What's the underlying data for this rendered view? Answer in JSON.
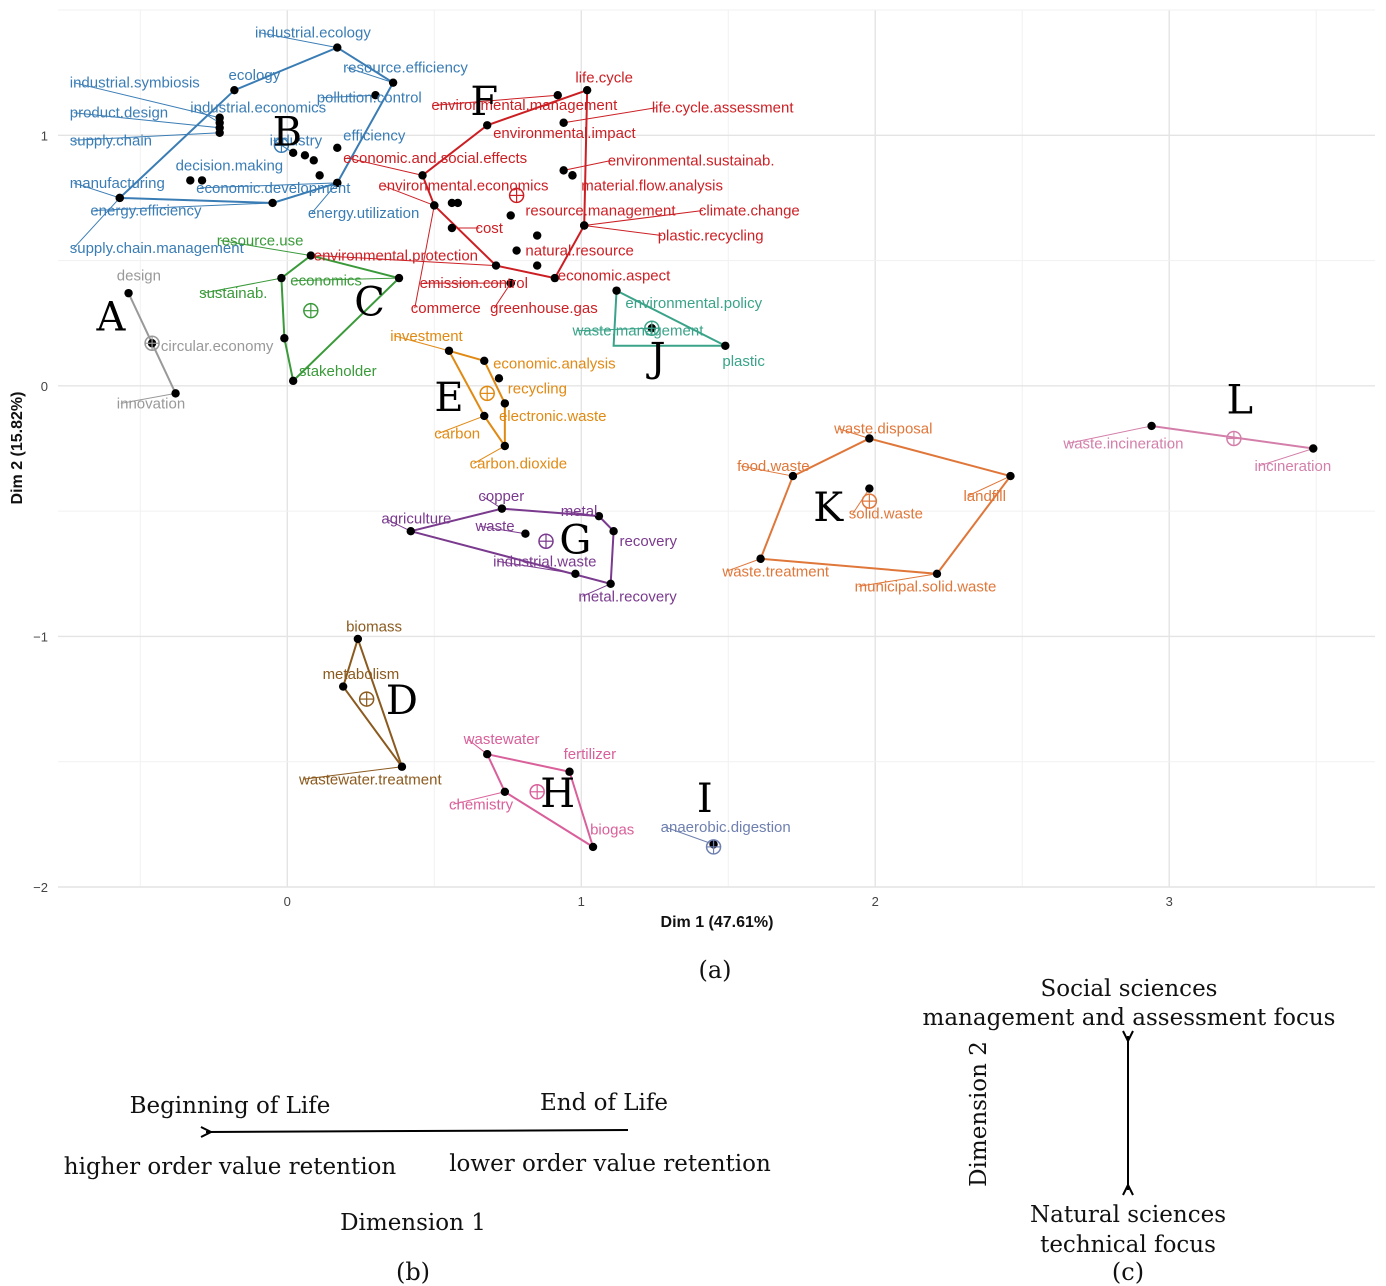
{
  "chart_data": {
    "type": "scatter",
    "title": "",
    "xlabel": "Dim 1 (47.61%)",
    "ylabel": "Dim 2 (15.82%)",
    "xlim": [
      -0.78,
      3.7
    ],
    "ylim": [
      -2.0,
      1.5
    ],
    "xticks": [
      0,
      1,
      2,
      3
    ],
    "yticks": [
      1,
      0,
      -1,
      -2
    ],
    "xtick_labels": [
      "0",
      "1",
      "2",
      "3"
    ],
    "ytick_labels": [
      "1",
      "0",
      "−1",
      "−2"
    ],
    "grid": true,
    "clusters": [
      {
        "letter": "A",
        "color": "#999999",
        "center": [
          -0.46,
          0.17
        ],
        "hull": [
          [
            -0.54,
            0.37
          ],
          [
            -0.38,
            -0.03
          ]
        ],
        "points": [
          {
            "label": "design",
            "x": -0.54,
            "y": 0.37,
            "lx": -0.58,
            "ly": 0.42
          },
          {
            "label": "circular.economy",
            "x": -0.46,
            "y": 0.17,
            "lx": -0.43,
            "ly": 0.14
          },
          {
            "label": "innovation",
            "x": -0.38,
            "y": -0.03,
            "lx": -0.58,
            "ly": -0.09
          }
        ]
      },
      {
        "letter": "B",
        "color": "#3A7DB5",
        "center": [
          -0.02,
          0.96
        ],
        "hull": [
          [
            0.17,
            1.35
          ],
          [
            0.36,
            1.21
          ],
          [
            0.17,
            0.81
          ],
          [
            -0.05,
            0.73
          ],
          [
            -0.57,
            0.75
          ],
          [
            -0.18,
            1.18
          ]
        ],
        "points": [
          {
            "label": "industrial.ecology",
            "x": 0.17,
            "y": 1.35,
            "lx": -0.11,
            "ly": 1.39
          },
          {
            "label": "resource.efficiency",
            "x": 0.36,
            "y": 1.21,
            "lx": 0.19,
            "ly": 1.25
          },
          {
            "label": "pollution.control",
            "x": 0.3,
            "y": 1.16,
            "lx": 0.1,
            "ly": 1.13
          },
          {
            "label": "ecology",
            "x": -0.18,
            "y": 1.18,
            "lx": -0.2,
            "ly": 1.22
          },
          {
            "label": "industrial.symbiosis",
            "x": -0.23,
            "y": 1.07,
            "lx": -0.74,
            "ly": 1.19
          },
          {
            "label": "industrial.economics",
            "x": -0.23,
            "y": 1.05,
            "lx": -0.33,
            "ly": 1.09
          },
          {
            "label": "product.design",
            "x": -0.23,
            "y": 1.03,
            "lx": -0.74,
            "ly": 1.07
          },
          {
            "label": "supply.chain",
            "x": -0.23,
            "y": 1.01,
            "lx": -0.74,
            "ly": 0.96
          },
          {
            "label": "industry",
            "x": 0.02,
            "y": 0.93,
            "lx": -0.06,
            "ly": 0.96
          },
          {
            "label": "efficiency",
            "x": 0.17,
            "y": 0.95,
            "lx": 0.19,
            "ly": 0.98
          },
          {
            "label": "",
            "x": 0.06,
            "y": 0.92
          },
          {
            "label": "",
            "x": 0.09,
            "y": 0.9
          },
          {
            "label": "",
            "x": 0.11,
            "y": 0.84
          },
          {
            "label": "decision.making",
            "x": -0.33,
            "y": 0.82,
            "lx": -0.38,
            "ly": 0.86
          },
          {
            "label": "",
            "x": -0.29,
            "y": 0.82
          },
          {
            "label": "manufacturing",
            "x": -0.57,
            "y": 0.75,
            "lx": -0.74,
            "ly": 0.79
          },
          {
            "label": "economic.development",
            "x": 0.17,
            "y": 0.81,
            "lx": -0.31,
            "ly": 0.77
          },
          {
            "label": "energy.efficiency",
            "x": -0.05,
            "y": 0.73,
            "lx": -0.67,
            "ly": 0.68
          },
          {
            "label": "energy.utilization",
            "x": 0.17,
            "y": 0.81,
            "lx": 0.07,
            "ly": 0.67
          },
          {
            "label": "supply.chain.management",
            "x": -0.57,
            "y": 0.75,
            "lx": -0.74,
            "ly": 0.53
          }
        ]
      },
      {
        "letter": "C",
        "color": "#3A9A3A",
        "center": [
          0.08,
          0.3
        ],
        "hull": [
          [
            0.08,
            0.52
          ],
          [
            0.38,
            0.43
          ],
          [
            0.02,
            0.02
          ],
          [
            -0.01,
            0.19
          ],
          [
            -0.02,
            0.43
          ]
        ],
        "points": [
          {
            "label": "resource.use",
            "x": 0.08,
            "y": 0.52,
            "lx": -0.24,
            "ly": 0.56
          },
          {
            "label": "economics",
            "x": 0.38,
            "y": 0.43,
            "lx": 0.01,
            "ly": 0.4
          },
          {
            "label": "sustainab.",
            "x": -0.02,
            "y": 0.43,
            "lx": -0.3,
            "ly": 0.35
          },
          {
            "label": "",
            "x": -0.01,
            "y": 0.19
          },
          {
            "label": "stakeholder",
            "x": 0.02,
            "y": 0.02,
            "lx": 0.04,
            "ly": 0.04
          }
        ]
      },
      {
        "letter": "D",
        "color": "#8B5A1E",
        "center": [
          0.27,
          -1.25
        ],
        "hull": [
          [
            0.24,
            -1.01
          ],
          [
            0.39,
            -1.52
          ],
          [
            0.19,
            -1.2
          ]
        ],
        "points": [
          {
            "label": "biomass",
            "x": 0.24,
            "y": -1.01,
            "lx": 0.2,
            "ly": -0.98
          },
          {
            "label": "metabolism",
            "x": 0.19,
            "y": -1.2,
            "lx": 0.12,
            "ly": -1.17
          },
          {
            "label": "wastewater.treatment",
            "x": 0.39,
            "y": -1.52,
            "lx": 0.04,
            "ly": -1.59
          }
        ]
      },
      {
        "letter": "E",
        "color": "#E08A14",
        "center": [
          0.68,
          -0.03
        ],
        "hull": [
          [
            0.55,
            0.14
          ],
          [
            0.67,
            0.1
          ],
          [
            0.74,
            -0.07
          ],
          [
            0.74,
            -0.24
          ],
          [
            0.67,
            -0.12
          ]
        ],
        "points": [
          {
            "label": "investment",
            "x": 0.55,
            "y": 0.14,
            "lx": 0.35,
            "ly": 0.18
          },
          {
            "label": "economic.analysis",
            "x": 0.67,
            "y": 0.1,
            "lx": 0.7,
            "ly": 0.07
          },
          {
            "label": "recycling",
            "x": 0.72,
            "y": 0.03,
            "lx": 0.75,
            "ly": -0.03
          },
          {
            "label": "electronic.waste",
            "x": 0.74,
            "y": -0.07,
            "lx": 0.72,
            "ly": -0.14
          },
          {
            "label": "carbon",
            "x": 0.67,
            "y": -0.12,
            "lx": 0.5,
            "ly": -0.21
          },
          {
            "label": "carbon.dioxide",
            "x": 0.74,
            "y": -0.24,
            "lx": 0.62,
            "ly": -0.33
          }
        ]
      },
      {
        "letter": "F",
        "color": "#CC1F24",
        "center": [
          0.78,
          0.76
        ],
        "hull": [
          [
            1.02,
            1.18
          ],
          [
            1.01,
            0.64
          ],
          [
            0.91,
            0.43
          ],
          [
            0.71,
            0.48
          ],
          [
            0.5,
            0.72
          ],
          [
            0.46,
            0.84
          ],
          [
            0.68,
            1.04
          ]
        ],
        "points": [
          {
            "label": "life.cycle",
            "x": 1.02,
            "y": 1.18,
            "lx": 0.98,
            "ly": 1.21
          },
          {
            "label": "environmental.management",
            "x": 0.92,
            "y": 1.16,
            "lx": 0.49,
            "ly": 1.1
          },
          {
            "label": "life.cycle.assessment",
            "x": 0.94,
            "y": 1.05,
            "lx": 1.24,
            "ly": 1.09
          },
          {
            "label": "environmental.impact",
            "x": 0.68,
            "y": 1.04,
            "lx": 0.7,
            "ly": 0.99
          },
          {
            "label": "economic.and.social.effects",
            "x": 0.46,
            "y": 0.84,
            "lx": 0.19,
            "ly": 0.89
          },
          {
            "label": "environmental.sustainab.",
            "x": 0.94,
            "y": 0.86,
            "lx": 1.09,
            "ly": 0.88
          },
          {
            "label": "",
            "x": 0.97,
            "y": 0.84
          },
          {
            "label": "material.flow.analysis",
            "x": 0.97,
            "y": 0.84,
            "lx": 1.0,
            "ly": 0.78
          },
          {
            "label": "environmental.economics",
            "x": 0.5,
            "y": 0.72,
            "lx": 0.31,
            "ly": 0.78
          },
          {
            "label": "",
            "x": 0.56,
            "y": 0.73
          },
          {
            "label": "",
            "x": 0.58,
            "y": 0.73
          },
          {
            "label": "resource.management",
            "x": 0.76,
            "y": 0.68,
            "lx": 0.81,
            "ly": 0.68
          },
          {
            "label": "climate.change",
            "x": 1.01,
            "y": 0.64,
            "lx": 1.4,
            "ly": 0.68
          },
          {
            "label": "cost",
            "x": 0.56,
            "y": 0.63,
            "lx": 0.64,
            "ly": 0.61
          },
          {
            "label": "",
            "x": 0.85,
            "y": 0.6
          },
          {
            "label": "plastic.recycling",
            "x": 1.01,
            "y": 0.64,
            "lx": 1.26,
            "ly": 0.58
          },
          {
            "label": "natural.resource",
            "x": 0.78,
            "y": 0.54,
            "lx": 0.81,
            "ly": 0.52
          },
          {
            "label": "environmental.protection",
            "x": 0.71,
            "y": 0.48,
            "lx": 0.09,
            "ly": 0.5
          },
          {
            "label": "",
            "x": 0.85,
            "y": 0.48
          },
          {
            "label": "economic.aspect",
            "x": 0.91,
            "y": 0.43,
            "lx": 0.92,
            "ly": 0.42
          },
          {
            "label": "emission.control",
            "x": 0.76,
            "y": 0.41,
            "lx": 0.45,
            "ly": 0.39
          },
          {
            "label": "commerce",
            "x": 0.5,
            "y": 0.72,
            "lx": 0.42,
            "ly": 0.29
          },
          {
            "label": "greenhouse.gas",
            "x": 0.76,
            "y": 0.41,
            "lx": 0.69,
            "ly": 0.29
          }
        ]
      },
      {
        "letter": "G",
        "color": "#7A3A8E",
        "center": [
          0.88,
          -0.62
        ],
        "hull": [
          [
            0.73,
            -0.49
          ],
          [
            1.06,
            -0.52
          ],
          [
            1.11,
            -0.58
          ],
          [
            1.1,
            -0.79
          ],
          [
            0.42,
            -0.58
          ]
        ],
        "points": [
          {
            "label": "copper",
            "x": 0.73,
            "y": -0.49,
            "lx": 0.65,
            "ly": -0.46
          },
          {
            "label": "metal",
            "x": 1.06,
            "y": -0.52,
            "lx": 0.93,
            "ly": -0.52
          },
          {
            "label": "recovery",
            "x": 1.11,
            "y": -0.58,
            "lx": 1.13,
            "ly": -0.64
          },
          {
            "label": "agriculture",
            "x": 0.42,
            "y": -0.58,
            "lx": 0.32,
            "ly": -0.55
          },
          {
            "label": "waste",
            "x": 0.81,
            "y": -0.59,
            "lx": 0.64,
            "ly": -0.58
          },
          {
            "label": "industrial.waste",
            "x": 0.98,
            "y": -0.75,
            "lx": 0.7,
            "ly": -0.72
          },
          {
            "label": "metal.recovery",
            "x": 1.1,
            "y": -0.79,
            "lx": 0.99,
            "ly": -0.86
          }
        ]
      },
      {
        "letter": "H",
        "color": "#D9609A",
        "center": [
          0.85,
          -1.62
        ],
        "hull": [
          [
            0.68,
            -1.47
          ],
          [
            0.96,
            -1.54
          ],
          [
            1.04,
            -1.84
          ],
          [
            0.74,
            -1.62
          ]
        ],
        "points": [
          {
            "label": "wastewater",
            "x": 0.68,
            "y": -1.47,
            "lx": 0.6,
            "ly": -1.43
          },
          {
            "label": "fertilizer",
            "x": 0.96,
            "y": -1.54,
            "lx": 0.94,
            "ly": -1.49
          },
          {
            "label": "chemistry",
            "x": 0.74,
            "y": -1.62,
            "lx": 0.55,
            "ly": -1.69
          },
          {
            "label": "biogas",
            "x": 1.04,
            "y": -1.84,
            "lx": 1.03,
            "ly": -1.79
          }
        ]
      },
      {
        "letter": "I",
        "color": "#6F80B0",
        "center": [
          1.45,
          -1.84
        ],
        "hull": [],
        "points": [
          {
            "label": "anaerobic.digestion",
            "x": 1.45,
            "y": -1.83,
            "lx": 1.27,
            "ly": -1.78
          }
        ]
      },
      {
        "letter": "J",
        "color": "#3AA389",
        "center": [
          1.24,
          0.23
        ],
        "hull": [
          [
            1.12,
            0.38
          ],
          [
            1.49,
            0.16
          ],
          [
            1.11,
            0.16
          ]
        ],
        "points": [
          {
            "label": "environmental.policy",
            "x": 1.12,
            "y": 0.38,
            "lx": 1.15,
            "ly": 0.31
          },
          {
            "label": "waste.management",
            "x": 1.24,
            "y": 0.23,
            "lx": 0.97,
            "ly": 0.2
          },
          {
            "label": "plastic",
            "x": 1.49,
            "y": 0.16,
            "lx": 1.48,
            "ly": 0.08
          }
        ]
      },
      {
        "letter": "K",
        "color": "#E0773A",
        "center": [
          1.98,
          -0.46
        ],
        "hull": [
          [
            1.98,
            -0.21
          ],
          [
            2.46,
            -0.36
          ],
          [
            2.21,
            -0.75
          ],
          [
            1.61,
            -0.69
          ],
          [
            1.72,
            -0.36
          ]
        ],
        "points": [
          {
            "label": "waste.disposal",
            "x": 1.98,
            "y": -0.21,
            "lx": 1.86,
            "ly": -0.19
          },
          {
            "label": "food.waste",
            "x": 1.72,
            "y": -0.36,
            "lx": 1.53,
            "ly": -0.34
          },
          {
            "label": "landfill",
            "x": 2.46,
            "y": -0.36,
            "lx": 2.3,
            "ly": -0.46
          },
          {
            "label": "solid.waste",
            "x": 1.98,
            "y": -0.41,
            "lx": 1.91,
            "ly": -0.53
          },
          {
            "label": "waste.treatment",
            "x": 1.61,
            "y": -0.69,
            "lx": 1.48,
            "ly": -0.76
          },
          {
            "label": "municipal.solid.waste",
            "x": 2.21,
            "y": -0.75,
            "lx": 1.93,
            "ly": -0.82
          }
        ]
      },
      {
        "letter": "L",
        "color": "#D37FAA",
        "center": [
          3.22,
          -0.21
        ],
        "hull": [
          [
            2.94,
            -0.16
          ],
          [
            3.49,
            -0.25
          ]
        ],
        "points": [
          {
            "label": "waste.incineration",
            "x": 2.94,
            "y": -0.16,
            "lx": 2.64,
            "ly": -0.25
          },
          {
            "label": "incineration",
            "x": 3.49,
            "y": -0.25,
            "lx": 3.29,
            "ly": -0.34
          }
        ]
      }
    ]
  },
  "captions": {
    "a": "(a)",
    "b": "(b)",
    "c": "(c)"
  },
  "panel_b": {
    "left_top": "Beginning of Life",
    "right_top": "End of Life",
    "left_bottom": "higher order value retention",
    "right_bottom": "lower order value retention",
    "axis_title": "Dimension 1"
  },
  "panel_c": {
    "top_line1": "Social sciences",
    "top_line2": "management and assessment focus",
    "axis_title": "Dimension 2",
    "bottom_line1": "Natural sciences",
    "bottom_line2": "technical focus"
  }
}
